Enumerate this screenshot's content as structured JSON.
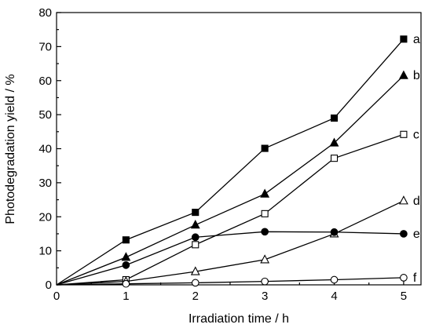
{
  "chart_data": {
    "type": "line",
    "title": "",
    "xlabel": "Irradiation time / h",
    "ylabel": "Photodegradation yield / %",
    "xlim": [
      0,
      5.25
    ],
    "ylim": [
      0,
      80
    ],
    "x_ticks": [
      0,
      1,
      2,
      3,
      4,
      5
    ],
    "y_ticks": [
      0,
      10,
      20,
      30,
      40,
      50,
      60,
      70,
      80
    ],
    "grid": false,
    "legend": "none",
    "x": [
      0,
      1,
      2,
      3,
      4,
      5
    ],
    "series": [
      {
        "name": "a",
        "marker": "filled-square",
        "values": [
          0,
          13.2,
          21.3,
          40.1,
          49.0,
          72.2
        ]
      },
      {
        "name": "b",
        "marker": "filled-triangle",
        "values": [
          0,
          8.1,
          17.6,
          26.7,
          41.7,
          61.5
        ]
      },
      {
        "name": "c",
        "marker": "open-square",
        "values": [
          0,
          1.5,
          11.8,
          20.9,
          37.2,
          44.2
        ]
      },
      {
        "name": "d",
        "marker": "open-triangle",
        "values": [
          0,
          1.0,
          3.9,
          7.4,
          15.0,
          24.7
        ]
      },
      {
        "name": "e",
        "marker": "filled-circle",
        "values": [
          0,
          5.8,
          14.0,
          15.6,
          15.5,
          15.0
        ]
      },
      {
        "name": "f",
        "marker": "open-circle",
        "values": [
          0,
          0.3,
          0.6,
          1.0,
          1.5,
          2.1
        ]
      }
    ]
  }
}
